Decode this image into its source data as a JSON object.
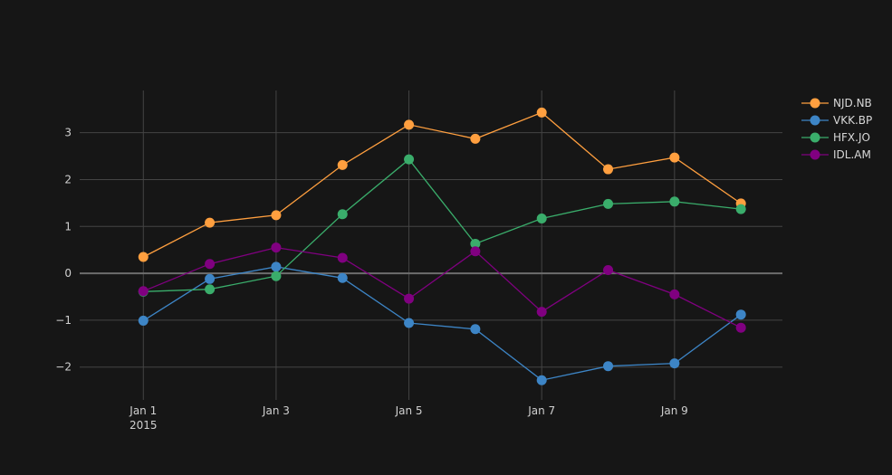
{
  "chart_data": {
    "type": "line",
    "x": [
      "2015-01-01",
      "2015-01-02",
      "2015-01-03",
      "2015-01-04",
      "2015-01-05",
      "2015-01-06",
      "2015-01-07",
      "2015-01-08",
      "2015-01-09",
      "2015-01-10"
    ],
    "x_ticks": [
      {
        "date": "2015-01-01",
        "label": "Jan 1",
        "sublabel": "2015"
      },
      {
        "date": "2015-01-03",
        "label": "Jan 3"
      },
      {
        "date": "2015-01-05",
        "label": "Jan 5"
      },
      {
        "date": "2015-01-07",
        "label": "Jan 7"
      },
      {
        "date": "2015-01-09",
        "label": "Jan 9"
      }
    ],
    "y_ticks": [
      {
        "value": -2,
        "label": "−2"
      },
      {
        "value": -1,
        "label": "−1"
      },
      {
        "value": 0,
        "label": "0"
      },
      {
        "value": 1,
        "label": "1"
      },
      {
        "value": 2,
        "label": "2"
      },
      {
        "value": 3,
        "label": "3"
      }
    ],
    "xlim": [
      "2014-12-31T01:00",
      "2015-01-10T15:00"
    ],
    "ylim": [
      -2.7,
      3.9
    ],
    "grid": true,
    "legend_position": "top-right",
    "title": "",
    "xlabel": "",
    "ylabel": "",
    "series": [
      {
        "name": "NJD.NB",
        "color": "#ff9f3f",
        "values": [
          0.35,
          1.08,
          1.24,
          2.31,
          3.17,
          2.87,
          3.43,
          2.22,
          2.47,
          1.49
        ]
      },
      {
        "name": "VKK.BP",
        "color": "#3d85c6",
        "values": [
          -1.01,
          -0.12,
          0.14,
          -0.1,
          -1.06,
          -1.19,
          -2.28,
          -1.98,
          -1.92,
          -0.88
        ]
      },
      {
        "name": "HFX.JO",
        "color": "#3aad6b",
        "values": [
          -0.39,
          -0.34,
          -0.06,
          1.26,
          2.43,
          0.63,
          1.17,
          1.48,
          1.53,
          1.37
        ]
      },
      {
        "name": "IDL.AM",
        "color": "#800080",
        "values": [
          -0.38,
          0.2,
          0.55,
          0.33,
          -0.54,
          0.47,
          -0.82,
          0.07,
          -0.45,
          -1.16
        ]
      }
    ]
  }
}
